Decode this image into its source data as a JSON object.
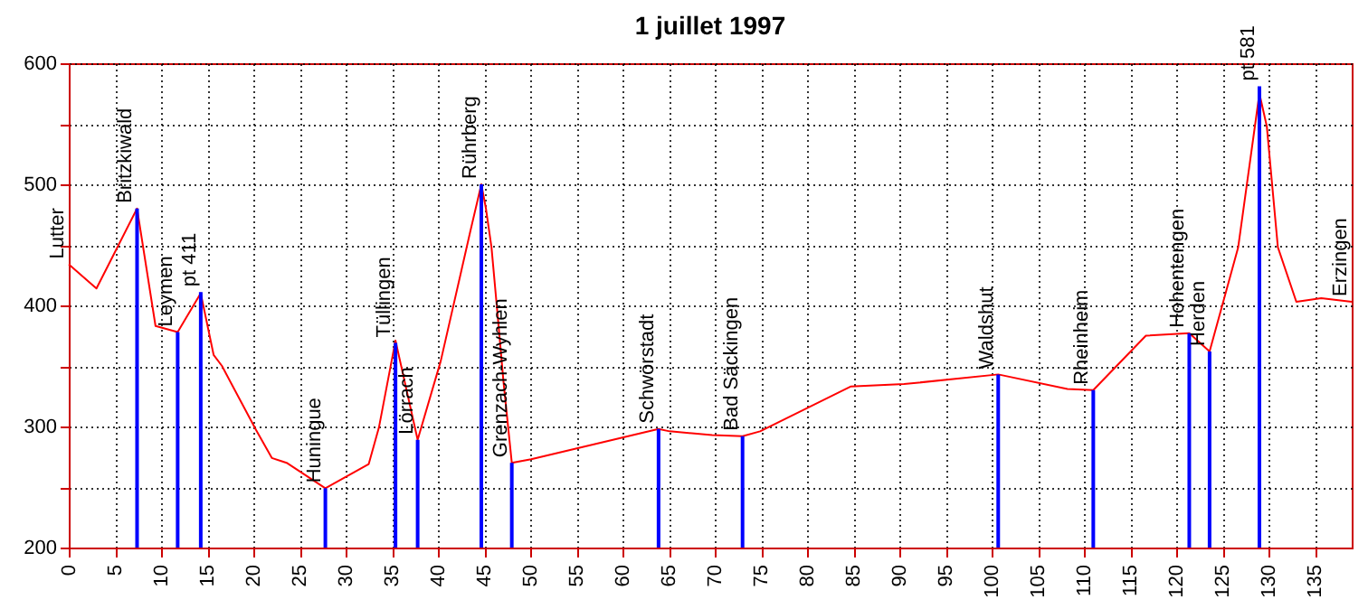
{
  "chart_data": {
    "type": "line",
    "title": "1 juillet 1997",
    "series": [
      {
        "color": "#ff0000",
        "x": [
          0,
          3.0,
          7.4,
          9.4,
          11.8,
          14.3,
          15.7,
          16.6,
          20.3,
          22,
          23.6,
          27.8,
          32.5,
          33.6,
          35.4,
          37.8,
          40.3,
          43.5,
          44.7,
          45.2,
          45.8,
          46.5,
          47.1,
          48,
          50.1,
          63.9,
          65.1,
          69.7,
          73,
          74.9,
          84.7,
          90.5,
          100.7,
          108.2,
          111,
          116.7,
          121.4,
          123.6,
          126.7,
          129,
          129.8,
          131,
          133,
          135.7,
          139
        ],
        "values": [
          434,
          414,
          480,
          383,
          378,
          410,
          359,
          350,
          297,
          274,
          270,
          249,
          269,
          299,
          371,
          289,
          354,
          461,
          500,
          480,
          448,
          389,
          337,
          270,
          273,
          298,
          296,
          293,
          292,
          296,
          333,
          335,
          343,
          331,
          330,
          375,
          377,
          362,
          448,
          575,
          548,
          448,
          403,
          406,
          403
        ]
      },
      {
        "type": "bar",
        "color": "#0000ff",
        "x": [
          7.4,
          11.8,
          14.3,
          27.8,
          35.4,
          37.8,
          44.7,
          48,
          63.9,
          73,
          100.7,
          111,
          121.4,
          123.6,
          129
        ],
        "values": [
          480,
          378,
          411,
          249,
          369,
          289,
          500,
          270,
          298,
          292,
          343,
          330,
          377,
          362,
          581
        ]
      }
    ],
    "annotations": [
      {
        "text": "Lutter",
        "x": 0,
        "y": 434
      },
      {
        "text": "Britzkiwald",
        "x": 7.4,
        "y": 480
      },
      {
        "text": "Leymen",
        "x": 11.8,
        "y": 378
      },
      {
        "text": "pt 411",
        "x": 14.3,
        "y": 411
      },
      {
        "text": "Huningue",
        "x": 27.8,
        "y": 249
      },
      {
        "text": "Tüllingen",
        "x": 35.4,
        "y": 369
      },
      {
        "text": "Lörrach",
        "x": 37.8,
        "y": 289
      },
      {
        "text": "Rührberg",
        "x": 44.7,
        "y": 500
      },
      {
        "text": "Grenzach-Wyhlen",
        "x": 48,
        "y": 270
      },
      {
        "text": "Schwörstadt",
        "x": 63.9,
        "y": 298
      },
      {
        "text": "Bad Säckingen",
        "x": 73,
        "y": 292
      },
      {
        "text": "Waldshut",
        "x": 100.7,
        "y": 343
      },
      {
        "text": "Rheinheim",
        "x": 111,
        "y": 330
      },
      {
        "text": "Hohentengen",
        "x": 121.4,
        "y": 377
      },
      {
        "text": "Herden",
        "x": 123.6,
        "y": 362
      },
      {
        "text": "pt 581",
        "x": 129,
        "y": 581
      },
      {
        "text": "Erzingen",
        "x": 139,
        "y": 403
      }
    ],
    "xlim": [
      0,
      139
    ],
    "xticks": [
      0,
      5,
      10,
      15,
      20,
      25,
      30,
      35,
      40,
      45,
      50,
      55,
      60,
      65,
      70,
      75,
      80,
      85,
      90,
      95,
      100,
      105,
      110,
      115,
      120,
      125,
      130,
      135
    ],
    "ylim": [
      200,
      600
    ],
    "yticks": [
      200,
      {
        "value": 250,
        "label": null
      },
      300,
      {
        "value": 350,
        "label": null
      },
      400,
      {
        "value": 450,
        "label": null
      },
      500,
      {
        "value": 550,
        "label": null
      },
      600
    ],
    "grid": true
  }
}
